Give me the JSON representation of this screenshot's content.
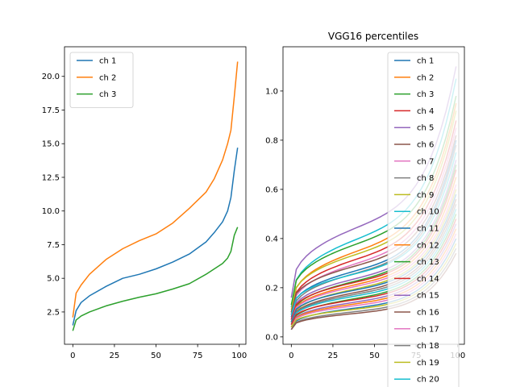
{
  "chart_data": [
    {
      "type": "line",
      "title": "",
      "xlabel": "",
      "ylabel": "",
      "xlim": [
        -5,
        104
      ],
      "ylim": [
        0.1,
        22.2
      ],
      "xticks": [
        0,
        25,
        50,
        75,
        100
      ],
      "yticks": [
        2.5,
        5.0,
        7.5,
        10.0,
        12.5,
        15.0,
        17.5,
        20.0
      ],
      "ytick_labels": [
        "2.5",
        "5.0",
        "7.5",
        "10.0",
        "12.5",
        "15.0",
        "17.5",
        "20.0"
      ],
      "legend_position": "top-left",
      "x": [
        0,
        2,
        5,
        10,
        20,
        30,
        40,
        50,
        60,
        70,
        80,
        85,
        90,
        93,
        95,
        97,
        99
      ],
      "series": [
        {
          "name": "ch 1",
          "color": "#1f77b4",
          "values": [
            1.5,
            2.6,
            3.2,
            3.7,
            4.4,
            5.0,
            5.3,
            5.7,
            6.2,
            6.8,
            7.7,
            8.4,
            9.2,
            10.0,
            11.0,
            13.0,
            14.7
          ]
        },
        {
          "name": "ch 2",
          "color": "#ff7f0e",
          "values": [
            2.1,
            3.9,
            4.5,
            5.3,
            6.4,
            7.2,
            7.8,
            8.3,
            9.1,
            10.2,
            11.4,
            12.4,
            13.8,
            15.0,
            16.0,
            18.5,
            21.1
          ]
        },
        {
          "name": "ch 3",
          "color": "#2ca02c",
          "values": [
            1.1,
            1.9,
            2.2,
            2.5,
            2.95,
            3.3,
            3.6,
            3.85,
            4.2,
            4.6,
            5.3,
            5.7,
            6.1,
            6.5,
            7.0,
            8.2,
            8.8
          ]
        }
      ]
    },
    {
      "type": "line",
      "title": "VGG16 percentiles",
      "xlabel": "",
      "ylabel": "",
      "xlim": [
        -5,
        104
      ],
      "ylim": [
        -0.03,
        1.18
      ],
      "xticks": [
        0,
        25,
        50,
        75,
        100
      ],
      "yticks": [
        0.0,
        0.2,
        0.4,
        0.6,
        0.8,
        1.0
      ],
      "ytick_labels": [
        "0.0",
        "0.2",
        "0.4",
        "0.6",
        "0.8",
        "1.0"
      ],
      "legend_position": "top-right",
      "series": [
        {
          "name": "ch 1",
          "color": "#1f77b4"
        },
        {
          "name": "ch 2",
          "color": "#ff7f0e"
        },
        {
          "name": "ch 3",
          "color": "#2ca02c"
        },
        {
          "name": "ch 4",
          "color": "#d62728"
        },
        {
          "name": "ch 5",
          "color": "#9467bd"
        },
        {
          "name": "ch 6",
          "color": "#8c564b"
        },
        {
          "name": "ch 7",
          "color": "#e377c2"
        },
        {
          "name": "ch 8",
          "color": "#7f7f7f"
        },
        {
          "name": "ch 9",
          "color": "#bcbd22"
        },
        {
          "name": "ch 10",
          "color": "#17becf"
        },
        {
          "name": "ch 11",
          "color": "#1f77b4"
        },
        {
          "name": "ch 12",
          "color": "#ff7f0e"
        },
        {
          "name": "ch 13",
          "color": "#2ca02c"
        },
        {
          "name": "ch 14",
          "color": "#d62728"
        },
        {
          "name": "ch 15",
          "color": "#9467bd"
        },
        {
          "name": "ch 16",
          "color": "#8c564b"
        },
        {
          "name": "ch 17",
          "color": "#e377c2"
        },
        {
          "name": "ch 18",
          "color": "#7f7f7f"
        },
        {
          "name": "ch 19",
          "color": "#bcbd22"
        },
        {
          "name": "ch 20",
          "color": "#17becf"
        }
      ],
      "curves": [
        {
          "color": "#9467bd",
          "start": 0.16,
          "mid": 0.55,
          "end": 1.1
        },
        {
          "color": "#17becf",
          "start": 0.12,
          "mid": 0.5,
          "end": 1.05
        },
        {
          "color": "#2ca02c",
          "start": 0.13,
          "mid": 0.47,
          "end": 0.98
        },
        {
          "color": "#ff7f0e",
          "start": 0.1,
          "mid": 0.44,
          "end": 0.95
        },
        {
          "color": "#bcbd22",
          "start": 0.11,
          "mid": 0.42,
          "end": 0.92
        },
        {
          "color": "#d62728",
          "start": 0.09,
          "mid": 0.4,
          "end": 0.88
        },
        {
          "color": "#e377c2",
          "start": 0.08,
          "mid": 0.38,
          "end": 0.85
        },
        {
          "color": "#8c564b",
          "start": 0.1,
          "mid": 0.36,
          "end": 0.82
        },
        {
          "color": "#1f77b4",
          "start": 0.08,
          "mid": 0.34,
          "end": 0.8
        },
        {
          "color": "#7f7f7f",
          "start": 0.07,
          "mid": 0.33,
          "end": 0.78
        },
        {
          "color": "#17becf",
          "start": 0.09,
          "mid": 0.32,
          "end": 0.75
        },
        {
          "color": "#9467bd",
          "start": 0.07,
          "mid": 0.3,
          "end": 0.72
        },
        {
          "color": "#2ca02c",
          "start": 0.06,
          "mid": 0.29,
          "end": 0.7
        },
        {
          "color": "#d62728",
          "start": 0.07,
          "mid": 0.28,
          "end": 0.68
        },
        {
          "color": "#ff7f0e",
          "start": 0.06,
          "mid": 0.27,
          "end": 0.65
        },
        {
          "color": "#e377c2",
          "start": 0.06,
          "mid": 0.26,
          "end": 0.62
        },
        {
          "color": "#bcbd22",
          "start": 0.05,
          "mid": 0.25,
          "end": 0.6
        },
        {
          "color": "#1f77b4",
          "start": 0.06,
          "mid": 0.24,
          "end": 0.58
        },
        {
          "color": "#8c564b",
          "start": 0.05,
          "mid": 0.23,
          "end": 0.56
        },
        {
          "color": "#7f7f7f",
          "start": 0.05,
          "mid": 0.22,
          "end": 0.54
        },
        {
          "color": "#17becf",
          "start": 0.05,
          "mid": 0.21,
          "end": 0.52
        },
        {
          "color": "#2ca02c",
          "start": 0.04,
          "mid": 0.2,
          "end": 0.5
        },
        {
          "color": "#d62728",
          "start": 0.05,
          "mid": 0.19,
          "end": 0.48
        },
        {
          "color": "#9467bd",
          "start": 0.04,
          "mid": 0.18,
          "end": 0.46
        },
        {
          "color": "#ff7f0e",
          "start": 0.04,
          "mid": 0.17,
          "end": 0.44
        },
        {
          "color": "#e377c2",
          "start": 0.04,
          "mid": 0.16,
          "end": 0.42
        },
        {
          "color": "#1f77b4",
          "start": 0.03,
          "mid": 0.15,
          "end": 0.4
        },
        {
          "color": "#bcbd22",
          "start": 0.04,
          "mid": 0.14,
          "end": 0.38
        },
        {
          "color": "#7f7f7f",
          "start": 0.03,
          "mid": 0.13,
          "end": 0.36
        },
        {
          "color": "#8c564b",
          "start": 0.03,
          "mid": 0.12,
          "end": 0.34
        }
      ]
    }
  ]
}
